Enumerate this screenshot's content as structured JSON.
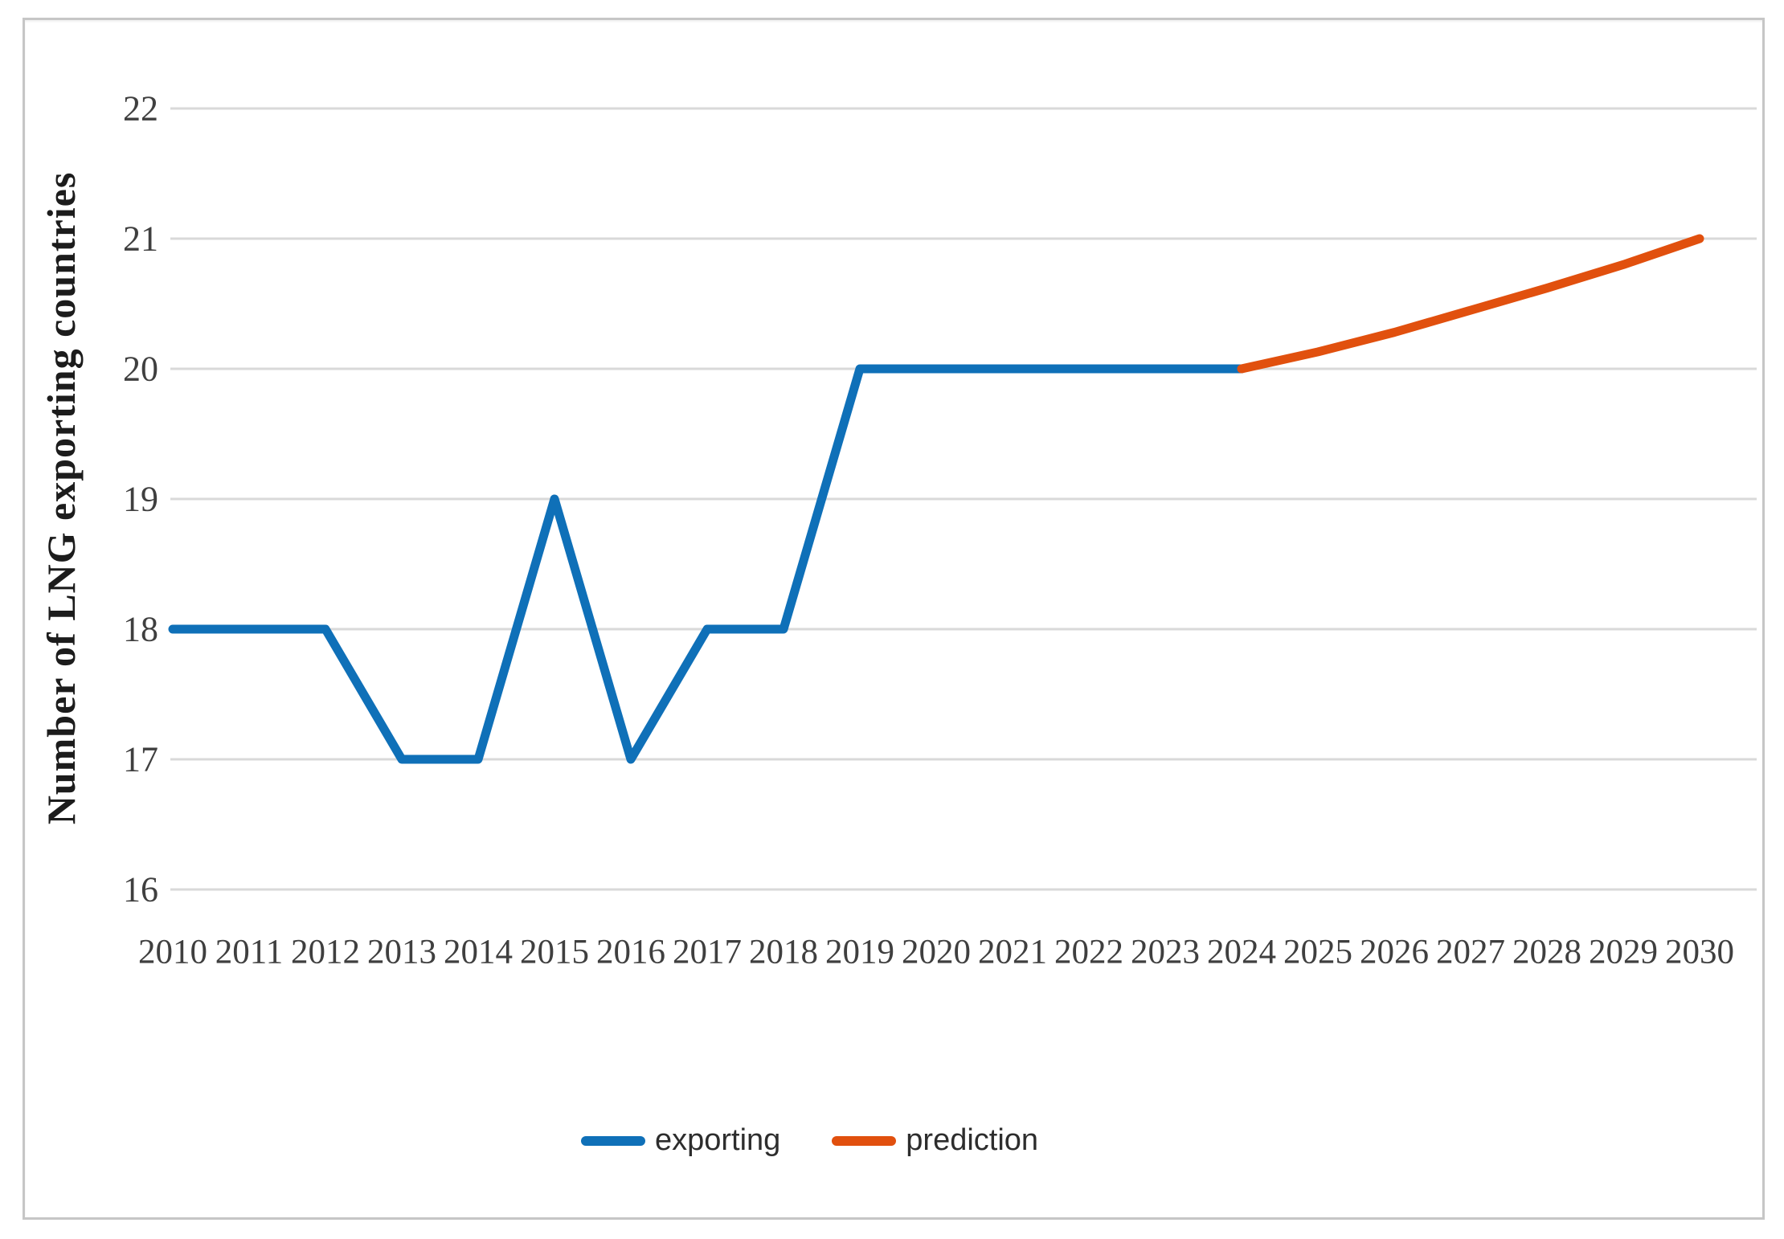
{
  "page": {
    "background": "#ffffff",
    "frame_border_color": "#c6c6c6"
  },
  "chart_data": {
    "type": "line",
    "title": "",
    "xlabel": "",
    "ylabel": "Number of LNG exporting countries",
    "xlim": [
      2010,
      2030
    ],
    "ylim": [
      16,
      22
    ],
    "x_ticks": [
      2010,
      2011,
      2012,
      2013,
      2014,
      2015,
      2016,
      2017,
      2018,
      2019,
      2020,
      2021,
      2022,
      2023,
      2024,
      2025,
      2026,
      2027,
      2028,
      2029,
      2030
    ],
    "y_ticks": [
      16,
      17,
      18,
      19,
      20,
      21,
      22
    ],
    "grid": true,
    "gridline_color": "#d9d9d9",
    "tick_label_color": "#3f3f3f",
    "legend_position": "bottom-center",
    "series": [
      {
        "name": "exporting",
        "color": "#0f70b8",
        "x": [
          2010,
          2011,
          2012,
          2013,
          2014,
          2015,
          2016,
          2017,
          2018,
          2019,
          2020,
          2021,
          2022,
          2023,
          2024
        ],
        "values": [
          18,
          18,
          18,
          17,
          17,
          19,
          17,
          18,
          18,
          20,
          20,
          20,
          20,
          20,
          20
        ]
      },
      {
        "name": "prediction",
        "color": "#e1500e",
        "x": [
          2024,
          2025,
          2026,
          2027,
          2028,
          2029,
          2030
        ],
        "values": [
          20,
          20.13,
          20.28,
          20.45,
          20.62,
          20.8,
          21
        ]
      }
    ]
  }
}
